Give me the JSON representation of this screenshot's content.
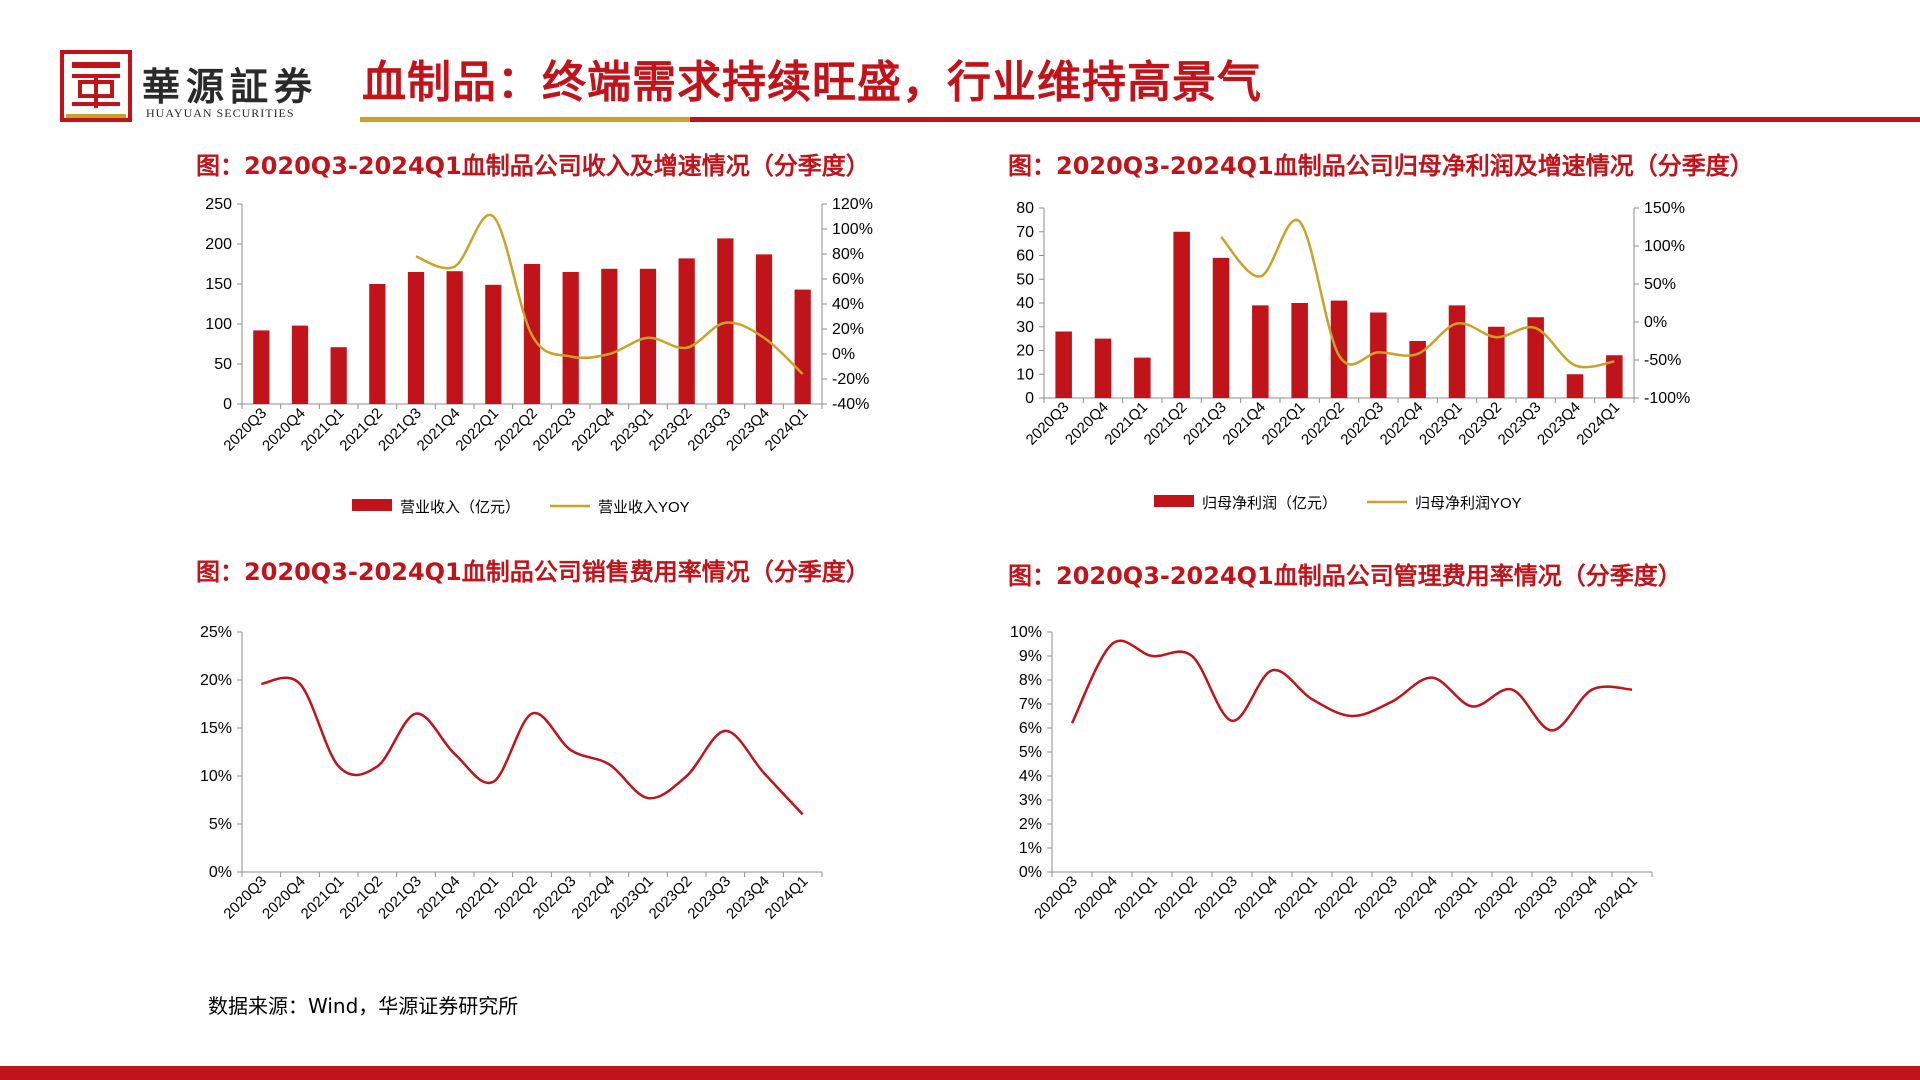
{
  "brand": {
    "name": "華源証券",
    "name_en": "HUAYUAN SECURITIES",
    "primary_color": "#c0131a",
    "accent_color": "#c9a227"
  },
  "page": {
    "title": "血制品：终端需求持续旺盛，行业维持高景气"
  },
  "source": "数据来源：Wind，华源证券研究所",
  "chart_data": [
    {
      "type": "bar",
      "title": "图：2020Q3-2024Q1血制品公司收入及增速情况（分季度）",
      "categories": [
        "2020Q3",
        "2020Q4",
        "2021Q1",
        "2021Q2",
        "2021Q3",
        "2021Q4",
        "2022Q1",
        "2022Q2",
        "2022Q3",
        "2022Q4",
        "2023Q1",
        "2023Q2",
        "2023Q3",
        "2023Q4",
        "2024Q1"
      ],
      "series": [
        {
          "name": "营业收入（亿元）",
          "kind": "bar",
          "axis": "left",
          "color": "#c0131a",
          "values": [
            92,
            98,
            71,
            150,
            165,
            166,
            149,
            175,
            165,
            169,
            169,
            182,
            207,
            187,
            143
          ]
        },
        {
          "name": "营业收入YOY",
          "kind": "line",
          "axis": "right",
          "color": "#c9a227",
          "values": [
            null,
            null,
            null,
            null,
            78,
            70,
            110,
            15,
            -2,
            0,
            13,
            5,
            25,
            13,
            -16
          ]
        }
      ],
      "y_left": {
        "min": 0,
        "max": 250,
        "step": 50,
        "ticks": [
          "0",
          "50",
          "100",
          "150",
          "200",
          "250"
        ]
      },
      "y_right": {
        "min": -40,
        "max": 120,
        "step": 20,
        "ticks": [
          "-40%",
          "-20%",
          "0%",
          "20%",
          "40%",
          "60%",
          "80%",
          "100%",
          "120%"
        ]
      },
      "legend": "bottom",
      "grid": false
    },
    {
      "type": "bar",
      "title": "图：2020Q3-2024Q1血制品公司归母净利润及增速情况（分季度）",
      "categories": [
        "2020Q3",
        "2020Q4",
        "2021Q1",
        "2021Q2",
        "2021Q3",
        "2021Q4",
        "2022Q1",
        "2022Q2",
        "2022Q3",
        "2022Q4",
        "2023Q1",
        "2023Q2",
        "2023Q3",
        "2023Q4",
        "2024Q1"
      ],
      "series": [
        {
          "name": "归母净利润（亿元）",
          "kind": "bar",
          "axis": "left",
          "color": "#c0131a",
          "values": [
            28,
            25,
            17,
            70,
            59,
            39,
            40,
            41,
            36,
            24,
            39,
            30,
            34,
            10,
            18
          ]
        },
        {
          "name": "归母净利润YOY",
          "kind": "line",
          "axis": "right",
          "color": "#c9a227",
          "values": [
            null,
            null,
            null,
            null,
            112,
            60,
            132,
            -44,
            -40,
            -42,
            -2,
            -20,
            -8,
            -57,
            -52
          ]
        }
      ],
      "y_left": {
        "min": 0,
        "max": 80,
        "step": 10,
        "ticks": [
          "0",
          "10",
          "20",
          "30",
          "40",
          "50",
          "60",
          "70",
          "80"
        ]
      },
      "y_right": {
        "min": -100,
        "max": 150,
        "step": 50,
        "ticks": [
          "-100%",
          "-50%",
          "0%",
          "50%",
          "100%",
          "150%"
        ]
      },
      "legend": "bottom",
      "grid": false
    },
    {
      "type": "line",
      "title": "图：2020Q3-2024Q1血制品公司销售费用率情况（分季度）",
      "categories": [
        "2020Q3",
        "2020Q4",
        "2021Q1",
        "2021Q2",
        "2021Q3",
        "2021Q4",
        "2022Q1",
        "2022Q2",
        "2022Q3",
        "2022Q4",
        "2023Q1",
        "2023Q2",
        "2023Q3",
        "2023Q4",
        "2024Q1"
      ],
      "series": [
        {
          "kind": "line",
          "axis": "left",
          "color": "#c0131a",
          "values": [
            19.6,
            19.6,
            11.0,
            11.0,
            16.5,
            12.3,
            9.4,
            16.5,
            12.7,
            11.2,
            7.7,
            10.0,
            14.7,
            10.3,
            6.0
          ]
        }
      ],
      "y_left": {
        "min": 0,
        "max": 25,
        "step": 5,
        "ticks": [
          "0%",
          "5%",
          "10%",
          "15%",
          "20%",
          "25%"
        ]
      },
      "legend": "none",
      "grid": false
    },
    {
      "type": "line",
      "title": "图：2020Q3-2024Q1血制品公司管理费用率情况（分季度）",
      "categories": [
        "2020Q3",
        "2020Q4",
        "2021Q1",
        "2021Q2",
        "2021Q3",
        "2021Q4",
        "2022Q1",
        "2022Q2",
        "2022Q3",
        "2022Q4",
        "2023Q1",
        "2023Q2",
        "2023Q3",
        "2023Q4",
        "2024Q1"
      ],
      "series": [
        {
          "kind": "line",
          "axis": "left",
          "color": "#c0131a",
          "values": [
            6.2,
            9.5,
            9.0,
            9.0,
            6.3,
            8.4,
            7.2,
            6.5,
            7.1,
            8.1,
            6.9,
            7.6,
            5.9,
            7.6,
            7.6
          ]
        }
      ],
      "y_left": {
        "min": 0,
        "max": 10,
        "step": 1,
        "ticks": [
          "0%",
          "1%",
          "2%",
          "3%",
          "4%",
          "5%",
          "6%",
          "7%",
          "8%",
          "9%",
          "10%"
        ]
      },
      "legend": "none",
      "grid": false
    }
  ]
}
